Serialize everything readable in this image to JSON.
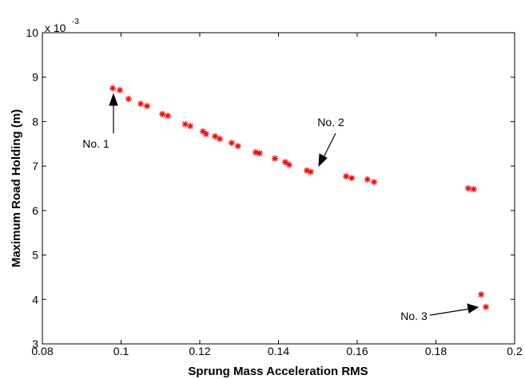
{
  "chart_data": {
    "type": "scatter",
    "xlabel": "Sprung Mass Acceleration RMS",
    "ylabel": "Maximum Road Holding (m)",
    "y_exponent_base": "x 10",
    "y_exponent_power": "-3",
    "annotations": [
      "No. 1",
      "No. 2",
      "No. 3"
    ],
    "xlim": [
      0.08,
      0.2
    ],
    "xticks": [
      0.08,
      0.1,
      0.12,
      0.14,
      0.16,
      0.18,
      0.2
    ],
    "ylim": [
      3,
      10
    ],
    "yticks": [
      3,
      4,
      5,
      6,
      7,
      8,
      9,
      10
    ],
    "color": "#ff0000",
    "marker": "asterisk",
    "x": [
      0.0979,
      0.0997,
      0.1019,
      0.105,
      0.1066,
      0.1105,
      0.1119,
      0.1163,
      0.1176,
      0.1208,
      0.1216,
      0.1239,
      0.1251,
      0.1281,
      0.1297,
      0.1342,
      0.1352,
      0.1391,
      0.1417,
      0.1427,
      0.1472,
      0.1482,
      0.1572,
      0.1586,
      0.1626,
      0.1643,
      0.1882,
      0.1896,
      0.1915,
      0.1927
    ],
    "values": [
      8.75,
      8.71,
      8.51,
      8.4,
      8.35,
      8.17,
      8.13,
      7.94,
      7.9,
      7.78,
      7.72,
      7.67,
      7.61,
      7.52,
      7.45,
      7.31,
      7.29,
      7.17,
      7.09,
      7.03,
      6.9,
      6.87,
      6.77,
      6.73,
      6.7,
      6.64,
      6.5,
      6.48,
      4.11,
      3.83
    ]
  }
}
